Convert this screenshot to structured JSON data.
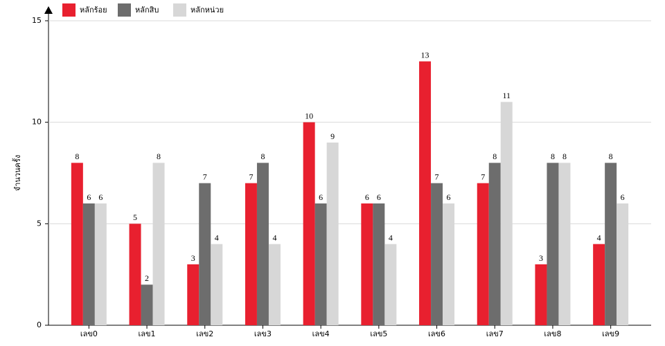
{
  "chart_data": {
    "type": "bar",
    "y_label": "จำนวนครั้ง",
    "categories": [
      "เลข0",
      "เลข1",
      "เลข2",
      "เลข3",
      "เลข4",
      "เลข5",
      "เลข6",
      "เลข7",
      "เลข8",
      "เลข9"
    ],
    "series": [
      {
        "name": "หลักร้อย",
        "color": "#e8202f",
        "values": [
          8,
          5,
          3,
          7,
          10,
          6,
          13,
          7,
          3,
          4
        ]
      },
      {
        "name": "หลักสิบ",
        "color": "#6d6d6d",
        "values": [
          6,
          2,
          7,
          8,
          6,
          6,
          7,
          8,
          8,
          8
        ]
      },
      {
        "name": "หลักหน่วย",
        "color": "#d7d7d7",
        "values": [
          6,
          8,
          4,
          4,
          9,
          4,
          6,
          11,
          8,
          6
        ]
      }
    ],
    "ylim": [
      0,
      15
    ],
    "yticks": [
      0,
      5,
      10,
      15
    ],
    "grid": true,
    "legend": "top-left"
  }
}
